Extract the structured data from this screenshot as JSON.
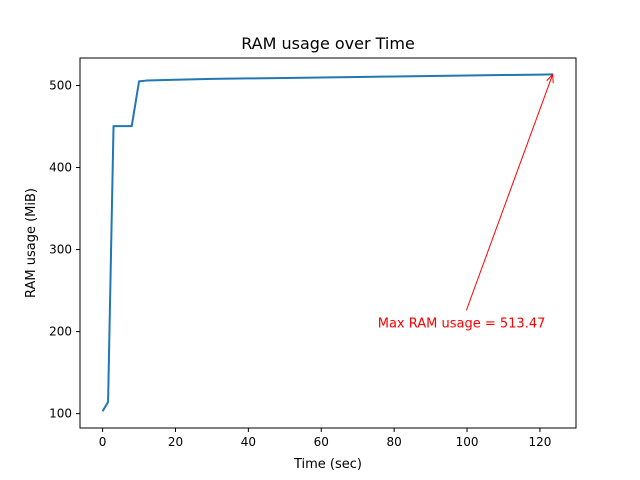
{
  "chart_data": {
    "type": "line",
    "title": "RAM usage over Time",
    "xlabel": "Time (sec)",
    "ylabel": "RAM usage (MiB)",
    "xlim": [
      -6.2,
      129.9
    ],
    "ylim": [
      82.5,
      533.5
    ],
    "xticks": [
      0,
      20,
      40,
      60,
      80,
      100,
      120
    ],
    "yticks": [
      100,
      200,
      300,
      400,
      500
    ],
    "grid": false,
    "series": [
      {
        "color": "#1f77b4",
        "x": [
          0,
          1.5,
          3,
          8,
          10,
          12,
          20,
          30,
          40,
          50,
          60,
          70,
          80,
          90,
          100,
          110,
          120,
          123.5
        ],
        "y": [
          103,
          114,
          450.5,
          450.5,
          505,
          506,
          507,
          508,
          508.6,
          509.2,
          509.8,
          510.4,
          511,
          511.6,
          512.2,
          512.8,
          513.2,
          513.47
        ]
      }
    ],
    "annotation": {
      "text": "Max RAM usage = 513.47",
      "color": "#ff0000",
      "xy": [
        123.5,
        513.47
      ],
      "xytext": [
        98.5,
        210
      ]
    }
  }
}
